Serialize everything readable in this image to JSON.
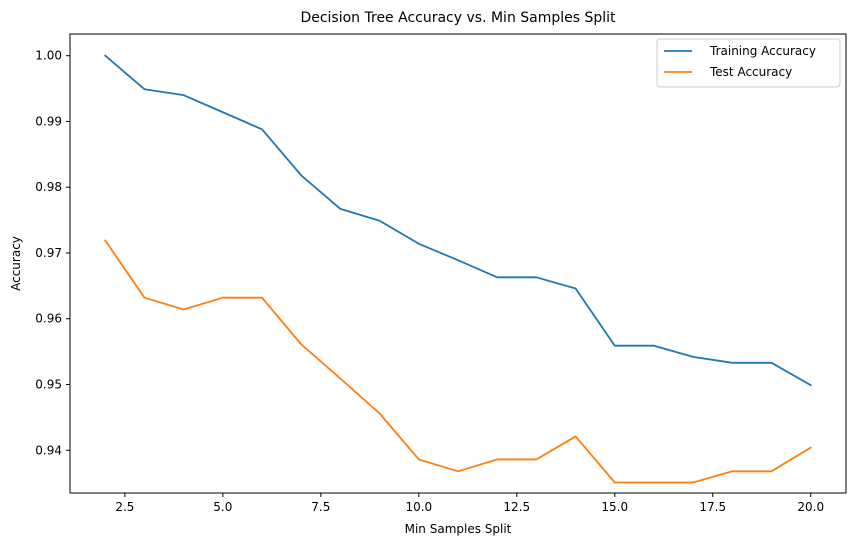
{
  "chart_data": {
    "type": "line",
    "title": "Decision Tree Accuracy vs. Min Samples Split",
    "xlabel": "Min Samples Split",
    "ylabel": "Accuracy",
    "xlim": [
      1.1,
      20.9
    ],
    "ylim": [
      0.9335,
      1.0033
    ],
    "x": [
      2,
      3,
      4,
      5,
      6,
      7,
      8,
      9,
      10,
      11,
      12,
      13,
      14,
      15,
      16,
      17,
      18,
      19,
      20
    ],
    "xticks": [
      2.5,
      5.0,
      7.5,
      10.0,
      12.5,
      15.0,
      17.5,
      20.0
    ],
    "xtick_labels": [
      "2.5",
      "5.0",
      "7.5",
      "10.0",
      "12.5",
      "15.0",
      "17.5",
      "20.0"
    ],
    "yticks": [
      0.94,
      0.95,
      0.96,
      0.97,
      0.98,
      0.99,
      1.0
    ],
    "ytick_labels": [
      "0.94",
      "0.95",
      "0.96",
      "0.97",
      "0.98",
      "0.99",
      "1.00"
    ],
    "grid": false,
    "legend_position": "top-right",
    "series": [
      {
        "name": "Training Accuracy",
        "color": "#1f77b4",
        "values": [
          1.0,
          0.9949,
          0.994,
          0.9914,
          0.9888,
          0.9818,
          0.9767,
          0.9749,
          0.9714,
          0.9689,
          0.9663,
          0.9663,
          0.9646,
          0.9559,
          0.9559,
          0.9542,
          0.9533,
          0.9533,
          0.9499
        ]
      },
      {
        "name": "Test Accuracy",
        "color": "#ff7f0e",
        "values": [
          0.9719,
          0.9632,
          0.9614,
          0.9632,
          0.9632,
          0.9561,
          0.9509,
          0.9456,
          0.9386,
          0.9368,
          0.9386,
          0.9386,
          0.9421,
          0.9351,
          0.9351,
          0.9351,
          0.9368,
          0.9368,
          0.9404
        ]
      }
    ]
  }
}
